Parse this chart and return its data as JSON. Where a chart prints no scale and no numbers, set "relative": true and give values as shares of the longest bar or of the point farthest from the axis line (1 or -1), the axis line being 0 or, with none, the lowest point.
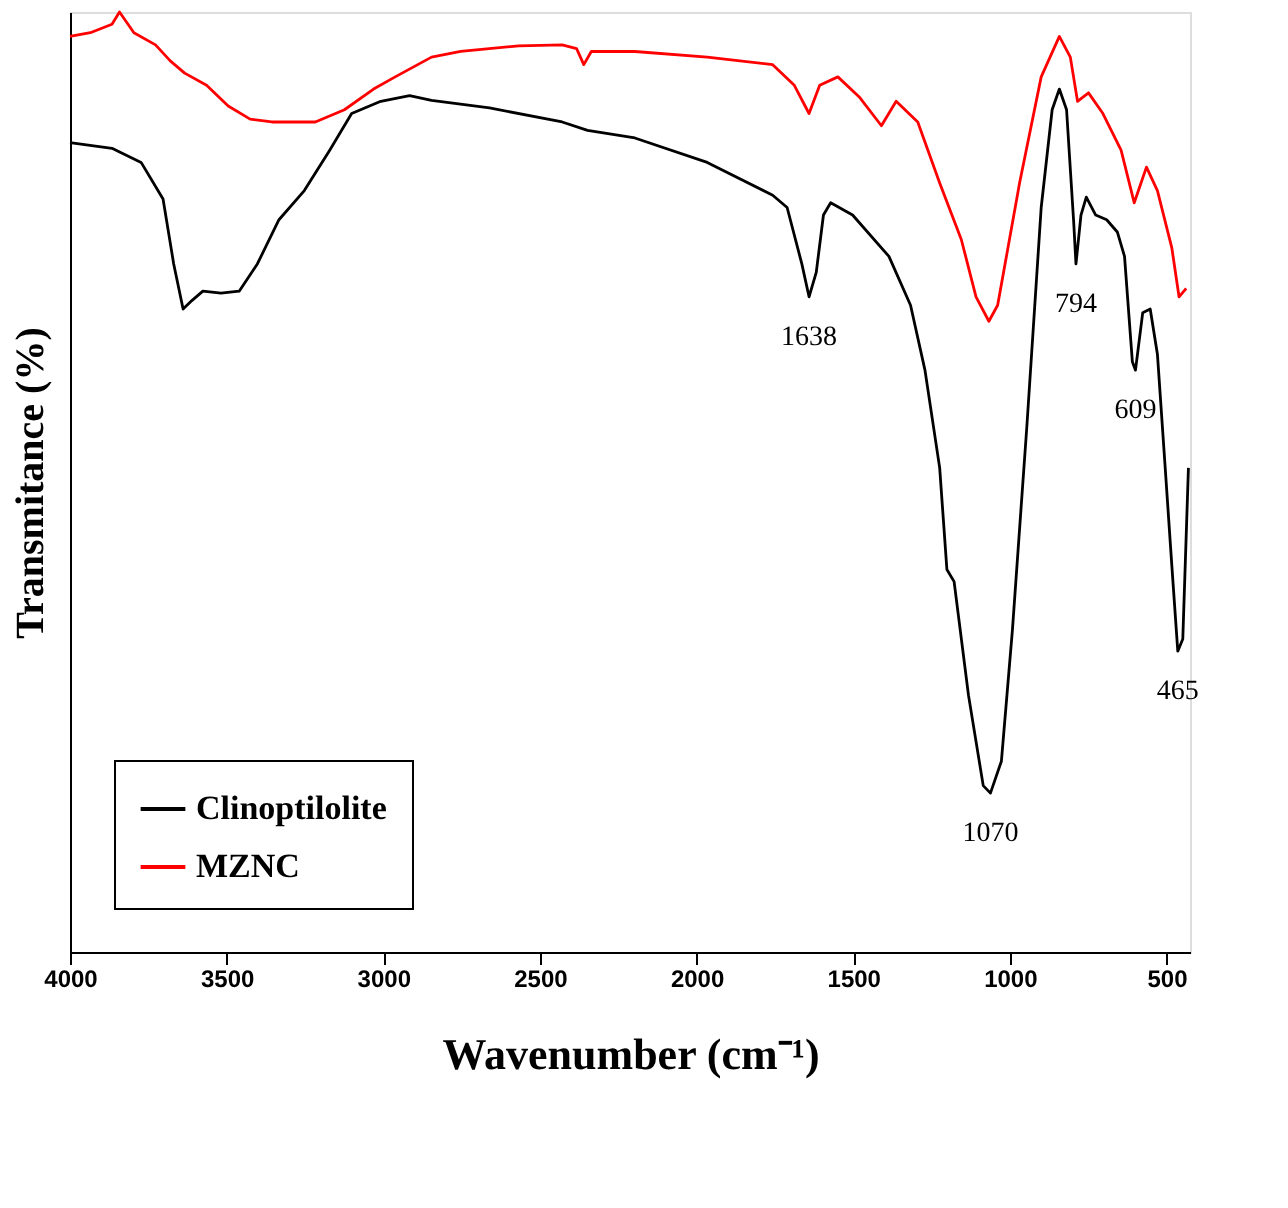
{
  "chart_data": {
    "type": "line",
    "relative": true,
    "xlabel": "Wavenumber (cm⁻¹)",
    "ylabel": "Transmitance (%)",
    "xlim": [
      4000,
      425
    ],
    "xticks": [
      4000,
      3500,
      3000,
      2500,
      2000,
      1500,
      1000,
      500
    ],
    "grid": false,
    "legend": "bottom left",
    "line_style": "solid",
    "marker": "none",
    "series": [
      {
        "name": "Clinoptilolite",
        "color": "#000000",
        "x": [
          4000,
          3866,
          3773,
          3703,
          3669,
          3639,
          3611,
          3576,
          3518,
          3460,
          3402,
          3333,
          3252,
          3171,
          3101,
          3008,
          2916,
          2846,
          2661,
          2429,
          2348,
          2197,
          1966,
          1757,
          1711,
          1664,
          1641,
          1618,
          1595,
          1572,
          1502,
          1386,
          1317,
          1271,
          1224,
          1201,
          1178,
          1132,
          1085,
          1062,
          1027,
          992,
          946,
          900,
          865,
          842,
          819,
          796,
          789,
          773,
          756,
          726,
          691,
          657,
          634,
          609,
          599,
          576,
          552,
          529,
          506,
          483,
          464,
          448,
          430
        ],
        "values": [
          0.861,
          0.855,
          0.84,
          0.801,
          0.732,
          0.684,
          0.693,
          0.703,
          0.701,
          0.703,
          0.732,
          0.779,
          0.81,
          0.853,
          0.892,
          0.905,
          0.911,
          0.906,
          0.898,
          0.883,
          0.874,
          0.866,
          0.84,
          0.805,
          0.792,
          0.732,
          0.697,
          0.723,
          0.784,
          0.797,
          0.784,
          0.74,
          0.688,
          0.619,
          0.515,
          0.407,
          0.394,
          0.273,
          0.177,
          0.169,
          0.203,
          0.342,
          0.558,
          0.792,
          0.896,
          0.918,
          0.896,
          0.775,
          0.732,
          0.784,
          0.803,
          0.784,
          0.779,
          0.766,
          0.74,
          0.628,
          0.619,
          0.68,
          0.684,
          0.636,
          0.524,
          0.411,
          0.32,
          0.333,
          0.515
        ]
      },
      {
        "name": "MZNC",
        "color": "#ff0000",
        "x": [
          4000,
          3935,
          3866,
          3842,
          3796,
          3727,
          3680,
          3634,
          3564,
          3495,
          3425,
          3356,
          3217,
          3124,
          3031,
          2962,
          2846,
          2753,
          2568,
          2429,
          2383,
          2360,
          2336,
          2197,
          1966,
          1757,
          1688,
          1641,
          1607,
          1549,
          1479,
          1410,
          1363,
          1294,
          1224,
          1155,
          1108,
          1067,
          1039,
          969,
          900,
          842,
          807,
          784,
          749,
          703,
          645,
          603,
          564,
          529,
          483,
          460,
          437
        ],
        "values": [
          0.974,
          0.978,
          0.987,
          1.0,
          0.978,
          0.965,
          0.948,
          0.935,
          0.922,
          0.9,
          0.886,
          0.883,
          0.883,
          0.896,
          0.918,
          0.931,
          0.952,
          0.958,
          0.964,
          0.965,
          0.961,
          0.944,
          0.958,
          0.958,
          0.952,
          0.944,
          0.922,
          0.892,
          0.922,
          0.931,
          0.909,
          0.879,
          0.905,
          0.883,
          0.818,
          0.758,
          0.697,
          0.671,
          0.688,
          0.818,
          0.931,
          0.974,
          0.952,
          0.905,
          0.914,
          0.892,
          0.853,
          0.797,
          0.835,
          0.81,
          0.749,
          0.697,
          0.706
        ]
      }
    ],
    "annotations": [
      {
        "text": "1638",
        "x": 1641,
        "y": 0.697
      },
      {
        "text": "1070",
        "x": 1062,
        "y": 0.169
      },
      {
        "text": "794",
        "x": 789,
        "y": 0.732
      },
      {
        "text": "609",
        "x": 599,
        "y": 0.619
      },
      {
        "text": "465",
        "x": 464,
        "y": 0.32
      }
    ]
  }
}
